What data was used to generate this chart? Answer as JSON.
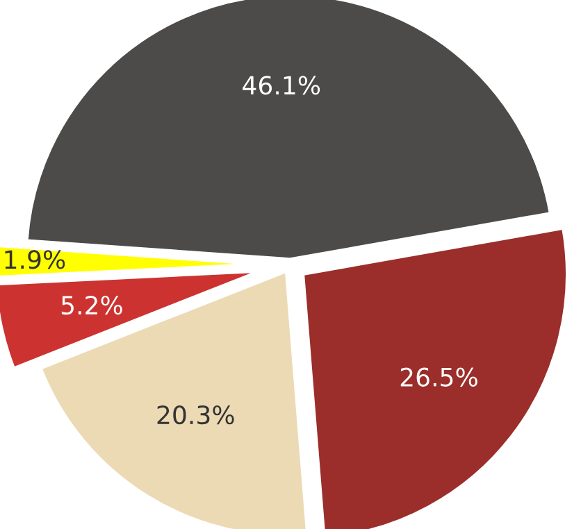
{
  "chart_data": {
    "type": "pie",
    "categories": [
      null,
      null,
      null,
      null,
      null
    ],
    "values": [
      46.1,
      1.9,
      5.2,
      20.3,
      26.5
    ],
    "colors": [
      "#4d4b49",
      "#ffff00",
      "#cc3330",
      "#ecdab5",
      "#9b2e2a"
    ],
    "value_labels": [
      "46.1%",
      "1.9%",
      "5.2%",
      "20.3%",
      "26.5%"
    ]
  }
}
